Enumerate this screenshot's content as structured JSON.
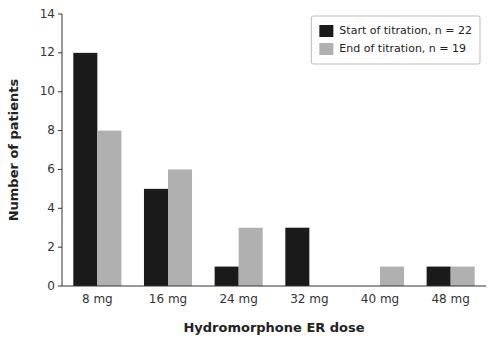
{
  "chart_data": {
    "type": "bar",
    "categories": [
      "8 mg",
      "16 mg",
      "24 mg",
      "32 mg",
      "40 mg",
      "48 mg"
    ],
    "series": [
      {
        "name": "Start of titration, n = 22",
        "color": "#1a1a1a",
        "values": [
          12,
          5,
          1,
          3,
          0,
          1
        ]
      },
      {
        "name": "End of titration, n = 19",
        "color": "#b0b0b0",
        "values": [
          8,
          6,
          3,
          0,
          1,
          1
        ]
      }
    ],
    "xlabel": "Hydromorphone ER dose",
    "ylabel": "Number of patients",
    "ylim": [
      0,
      14
    ],
    "yticks": [
      0,
      2,
      4,
      6,
      8,
      10,
      12,
      14
    ],
    "grid": false,
    "legend": "upper right"
  }
}
